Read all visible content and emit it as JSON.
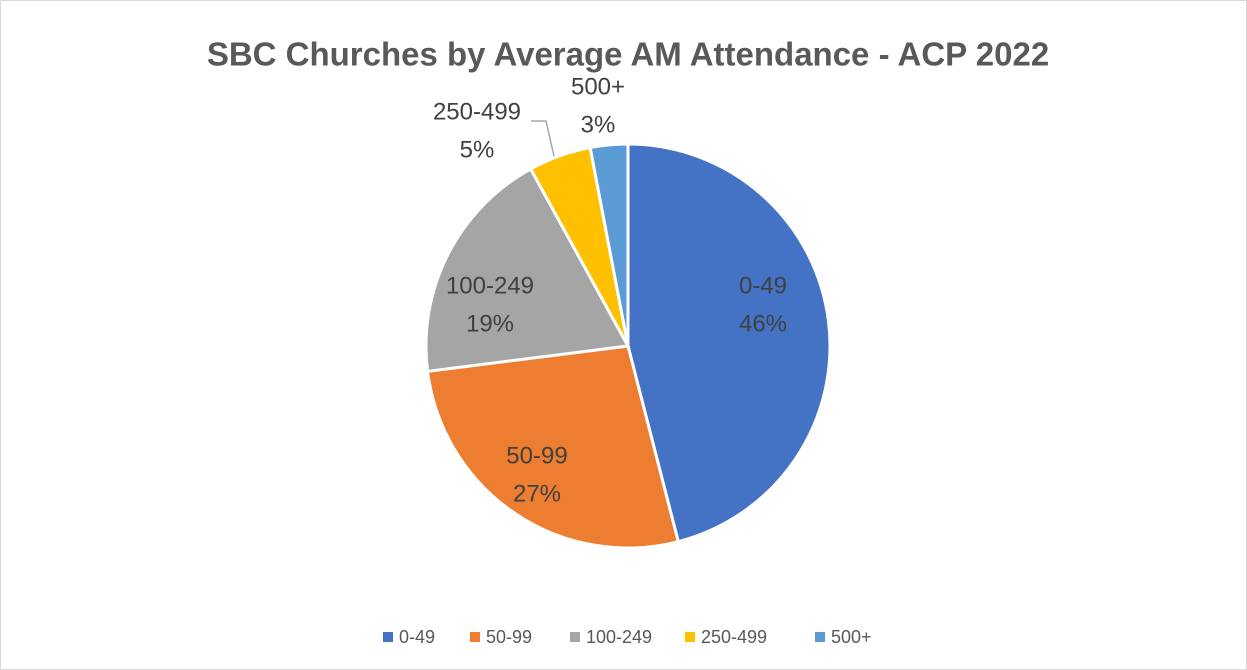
{
  "chart_data": {
    "type": "pie",
    "title": "SBC Churches by Average AM Attendance - ACP 2022",
    "categories": [
      "0-49",
      "50-99",
      "100-249",
      "250-499",
      "500+"
    ],
    "values": [
      46,
      27,
      19,
      5,
      3
    ],
    "value_labels": [
      "46%",
      "27%",
      "19%",
      "5%",
      "3%"
    ],
    "colors": [
      "#4472c4",
      "#ed7d31",
      "#a5a5a5",
      "#ffc000",
      "#5b9bd5"
    ],
    "legend": "bottom"
  }
}
